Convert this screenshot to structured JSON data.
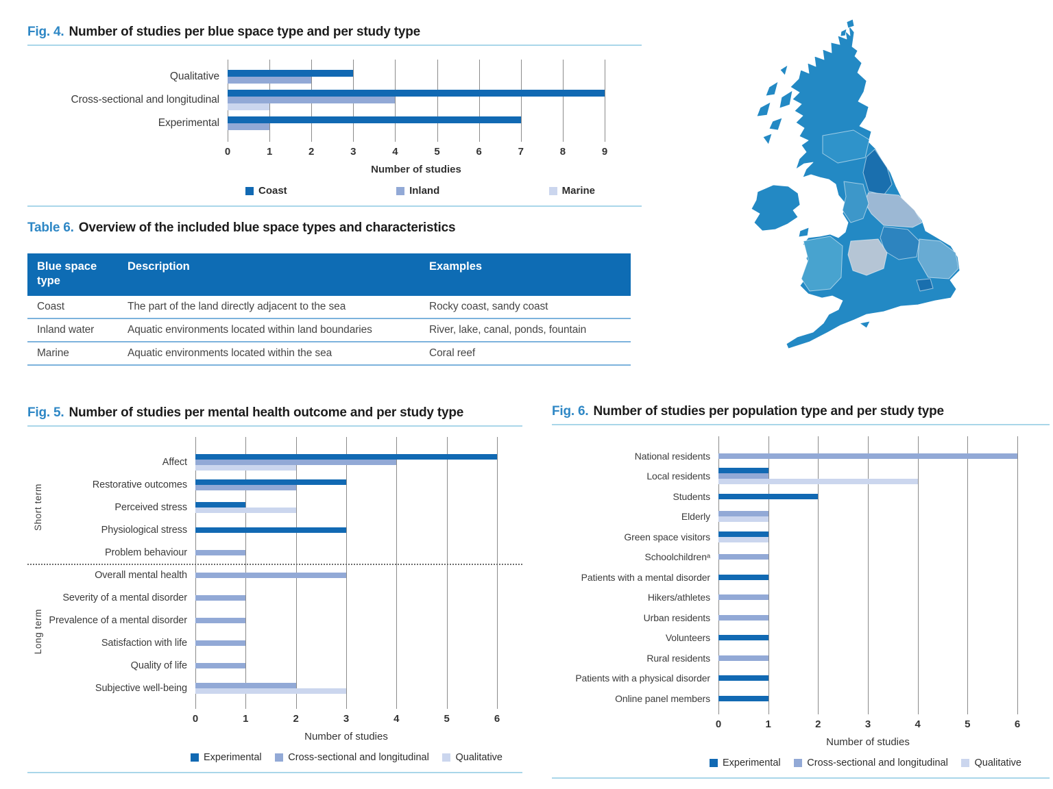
{
  "colors": {
    "series_dark": "#1169b3",
    "series_medium": "#92a9d6",
    "series_light": "#cbd6ee",
    "accent_blue": "#2e87c5",
    "table_header_bg": "#0e6cb4",
    "rule_light_blue": "#a9d6e9",
    "grid_gray": "#8a8a8a"
  },
  "fig4": {
    "label": "Fig. 4.",
    "title": "Number of studies per blue space type and per study type"
  },
  "fig5": {
    "label": "Fig. 5.",
    "title": "Number of studies per mental health outcome and per study type"
  },
  "fig6": {
    "label": "Fig. 6.",
    "title": "Number of studies per population type and per study type"
  },
  "table6": {
    "label": "Table 6.",
    "title": "Overview of the included blue space types and characteristics",
    "headers": [
      "Blue space type",
      "Description",
      "Examples"
    ],
    "rows": [
      [
        "Coast",
        "The part of the land directly adjacent to the sea",
        "Rocky coast, sandy coast"
      ],
      [
        "Inland water",
        "Aquatic environments located within land boundaries",
        "River, lake, canal, ponds, fountain"
      ],
      [
        "Marine",
        "Aquatic environments located within the sea",
        "Coral reef"
      ]
    ]
  },
  "map": {
    "alt": "United Kingdom regions map"
  },
  "chart_data": [
    {
      "id": "fig4",
      "type": "bar",
      "orientation": "horizontal",
      "title": "Number of studies per blue space type and per study type",
      "xlabel": "Number of studies",
      "x_max": 9,
      "x_ticks": [
        0,
        1,
        2,
        3,
        4,
        5,
        6,
        7,
        8,
        9
      ],
      "grid": true,
      "legend_position": "bottom",
      "categories": [
        "Qualitative",
        "Cross-sectional and longitudinal",
        "Experimental"
      ],
      "series": [
        {
          "name": "Coast",
          "values": [
            3,
            9,
            7
          ]
        },
        {
          "name": "Inland",
          "values": [
            2,
            4,
            1
          ]
        },
        {
          "name": "Marine",
          "values": [
            0,
            1,
            0
          ]
        }
      ]
    },
    {
      "id": "fig5",
      "type": "bar",
      "orientation": "horizontal",
      "title": "Number of studies per mental health outcome and per study type",
      "xlabel": "Number of studies",
      "x_max": 6,
      "x_ticks": [
        0,
        1,
        2,
        3,
        4,
        5,
        6
      ],
      "grid": true,
      "legend_position": "bottom",
      "groups": [
        {
          "label": "Short term",
          "count": 5
        },
        {
          "label": "Long term",
          "count": 6
        }
      ],
      "categories": [
        "Affect",
        "Restorative outcomes",
        "Perceived stress",
        "Physiological stress",
        "Problem behaviour",
        "Overall mental health",
        "Severity of a mental disorder",
        "Prevalence of a mental disorder",
        "Satisfaction with life",
        "Quality of life",
        "Subjective well-being"
      ],
      "series": [
        {
          "name": "Experimental",
          "values": [
            6,
            3,
            1,
            3,
            0,
            0,
            0,
            0,
            0,
            0,
            0
          ]
        },
        {
          "name": "Cross-sectional and longitudinal",
          "values": [
            4,
            2,
            0,
            0,
            1,
            3,
            1,
            1,
            1,
            1,
            2
          ]
        },
        {
          "name": "Qualitative",
          "values": [
            2,
            0,
            2,
            0,
            0,
            0,
            0,
            0,
            0,
            0,
            3
          ]
        }
      ]
    },
    {
      "id": "fig6",
      "type": "bar",
      "orientation": "horizontal",
      "title": "Number of studies per population type and per study type",
      "xlabel": "Number of studies",
      "x_max": 6,
      "x_ticks": [
        0,
        1,
        2,
        3,
        4,
        5,
        6
      ],
      "grid": true,
      "legend_position": "bottom",
      "categories": [
        "National residents",
        "Local residents",
        "Students",
        "Elderly",
        "Green space visitors",
        "Schoolchildrenᵃ",
        "Patients with a mental disorder",
        "Hikers/athletes",
        "Urban residents",
        "Volunteers",
        "Rural residents",
        "Patients with a physical disorder",
        "Online panel members"
      ],
      "series": [
        {
          "name": "Experimental",
          "values": [
            0,
            1,
            2,
            0,
            1,
            0,
            1,
            0,
            0,
            1,
            0,
            1,
            1
          ]
        },
        {
          "name": "Cross-sectional and longitudinal",
          "values": [
            6,
            1,
            0,
            1,
            0,
            1,
            0,
            1,
            1,
            0,
            1,
            0,
            0
          ]
        },
        {
          "name": "Qualitative",
          "values": [
            0,
            4,
            0,
            1,
            1,
            0,
            0,
            0,
            0,
            0,
            0,
            0,
            0
          ]
        }
      ]
    }
  ]
}
